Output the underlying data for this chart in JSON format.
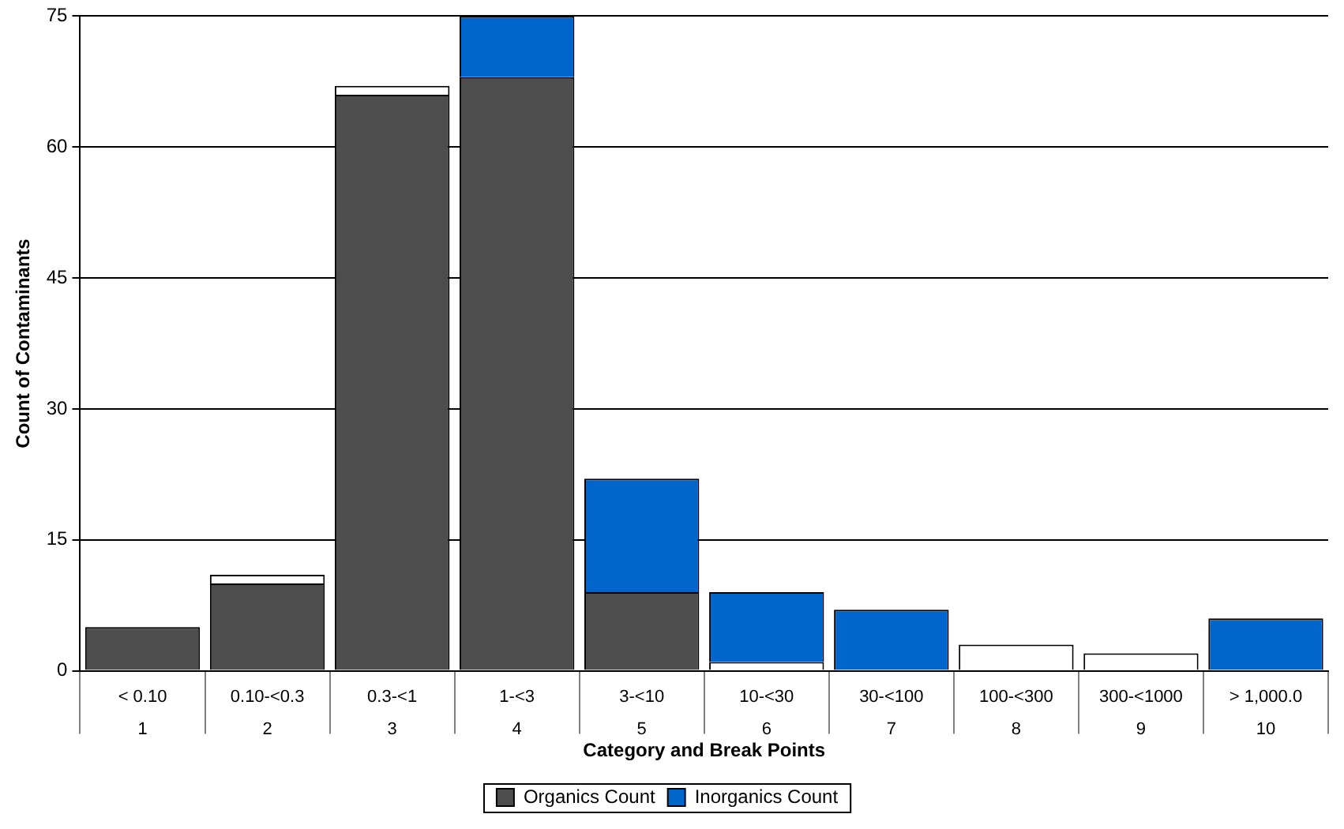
{
  "chart_data": {
    "type": "bar",
    "stacked": true,
    "xlabel": "Category and Break Points",
    "ylabel": "Count of Contaminants",
    "categories": [
      "< 0.10\n1",
      "0.10-<0.3\n2",
      "0.3-<1\n3",
      "1-<3\n4",
      "3-<10\n5",
      "10-<30\n6",
      "30-<100\n7",
      "100-<300\n8",
      "300-<1000\n9",
      "> 1,000.0\n10"
    ],
    "series": [
      {
        "name": "Organics Count",
        "color": "#4d4d4d",
        "values": [
          5,
          10,
          66,
          68,
          9,
          null,
          null,
          null,
          null,
          null
        ]
      },
      {
        "color": "#ffffff",
        "values": [
          null,
          1,
          1,
          null,
          null,
          1,
          null,
          3,
          2,
          null
        ]
      },
      {
        "name": "Inorganics Count",
        "color": "#0066cc",
        "values": [
          null,
          null,
          null,
          7,
          13,
          8,
          7,
          null,
          null,
          6
        ]
      }
    ],
    "ylim": [
      0,
      75
    ],
    "yticks": [
      0,
      15,
      30,
      45,
      60,
      75
    ],
    "grid": "y",
    "legend": "bottom"
  }
}
